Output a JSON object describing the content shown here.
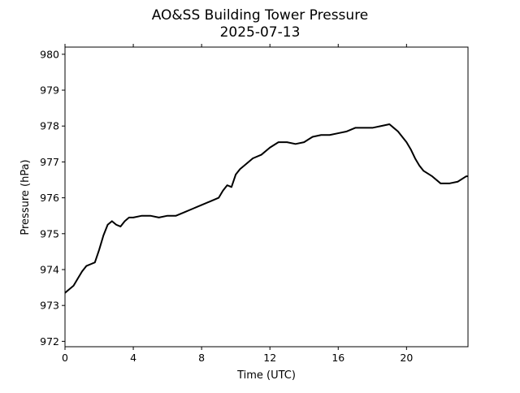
{
  "chart_data": {
    "type": "line",
    "title": "AO&SS Building Tower Pressure",
    "subtitle": "2025-07-13",
    "xlabel": "Time (UTC)",
    "ylabel": "Pressure (hPa)",
    "xlim": [
      0,
      23.6
    ],
    "ylim": [
      971.85,
      980.2
    ],
    "xticks": [
      0,
      4,
      8,
      12,
      16,
      20
    ],
    "yticks": [
      972,
      973,
      974,
      975,
      976,
      977,
      978,
      979,
      980
    ],
    "grid": false,
    "line_color": "#000000",
    "series": [
      {
        "x": [
          0,
          0.25,
          0.5,
          0.75,
          1.0,
          1.25,
          1.5,
          1.75,
          2.0,
          2.25,
          2.5,
          2.75,
          3.0,
          3.25,
          3.5,
          3.75,
          4.0,
          4.5,
          5.0,
          5.5,
          6.0,
          6.5,
          7.0,
          7.5,
          8.0,
          8.5,
          9.0,
          9.25,
          9.5,
          9.75,
          10.0,
          10.25,
          10.5,
          11.0,
          11.5,
          12.0,
          12.5,
          13.0,
          13.5,
          14.0,
          14.5,
          15.0,
          15.5,
          16.0,
          16.5,
          17.0,
          17.5,
          18.0,
          18.5,
          19.0,
          19.25,
          19.5,
          19.75,
          20.0,
          20.25,
          20.5,
          20.75,
          21.0,
          21.5,
          22.0,
          22.5,
          23.0,
          23.5,
          23.6
        ],
        "y": [
          973.35,
          973.45,
          973.55,
          973.75,
          973.95,
          974.1,
          974.15,
          974.2,
          974.55,
          974.95,
          975.25,
          975.35,
          975.25,
          975.2,
          975.35,
          975.45,
          975.45,
          975.5,
          975.5,
          975.45,
          975.5,
          975.5,
          975.6,
          975.7,
          975.8,
          975.9,
          976.0,
          976.2,
          976.35,
          976.3,
          976.65,
          976.8,
          976.9,
          977.1,
          977.2,
          977.4,
          977.55,
          977.55,
          977.5,
          977.55,
          977.7,
          977.75,
          977.75,
          977.8,
          977.85,
          977.95,
          977.95,
          977.95,
          978.0,
          978.05,
          977.95,
          977.85,
          977.7,
          977.55,
          977.35,
          977.1,
          976.9,
          976.75,
          976.6,
          976.4,
          976.4,
          976.45,
          976.6,
          976.6
        ]
      }
    ]
  }
}
